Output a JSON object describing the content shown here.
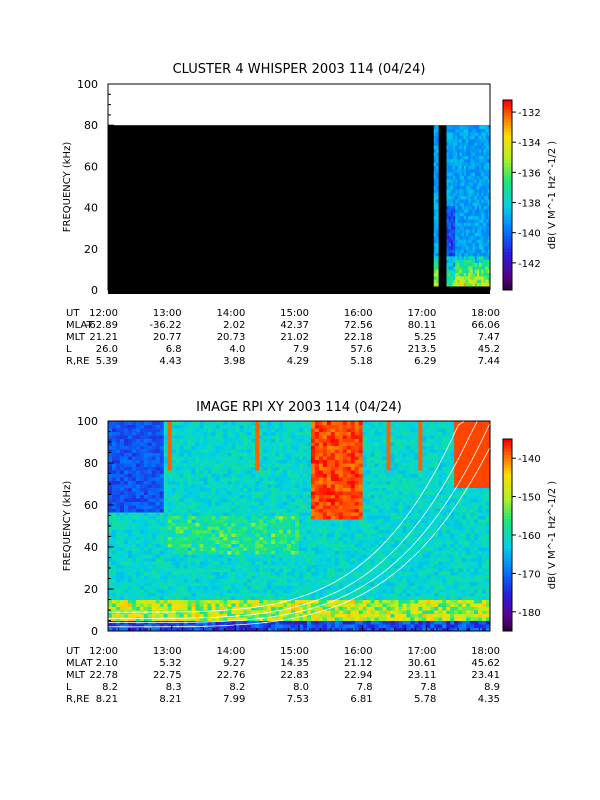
{
  "chart_data": [
    {
      "type": "heatmap",
      "title": "CLUSTER 4 WHISPER 2003 114 (04/24)",
      "xlabel": "",
      "ylabel": "FREQUENCY (kHz)",
      "xlim": [
        "12:00",
        "18:00"
      ],
      "ylim": [
        0,
        100
      ],
      "yticks": [
        "0",
        "20",
        "40",
        "60",
        "80",
        "100"
      ],
      "colorbar": {
        "label": "dB( V M^-1 Hz^-1/2 )",
        "range": [
          -143.8,
          -131.2
        ],
        "ticks": [
          "-132",
          "-134",
          "-136",
          "-138",
          "-140",
          "-142"
        ]
      },
      "coverage": "data between 17:05 and 17:25 and between 17:35 and 18:00, 0-80 kHz; elsewhere black (no data) below 80 kHz",
      "orbit_table": {
        "rows": [
          {
            "label": "UT",
            "values": [
              "12:00",
              "13:00",
              "14:00",
              "15:00",
              "16:00",
              "17:00",
              "18:00"
            ]
          },
          {
            "label": "MLAT",
            "values": [
              "-62.89",
              "-36.22",
              "2.02",
              "42.37",
              "72.56",
              "80.11",
              "66.06"
            ]
          },
          {
            "label": "MLT",
            "values": [
              "21.21",
              "20.77",
              "20.73",
              "21.02",
              "22.18",
              "5.25",
              "7.47"
            ]
          },
          {
            "label": "L",
            "values": [
              "26.0",
              "6.8",
              "4.0",
              "7.9",
              "57.6",
              "213.5",
              "45.2"
            ]
          },
          {
            "label": "R,RE",
            "values": [
              "5.39",
              "4.43",
              "3.98",
              "4.29",
              "5.18",
              "6.29",
              "7.44"
            ]
          }
        ]
      }
    },
    {
      "type": "heatmap",
      "title": "IMAGE RPI XY 2003 114 (04/24)",
      "xlabel": "",
      "ylabel": "FREQUENCY (kHz)",
      "xlim": [
        "12:00",
        "18:00"
      ],
      "ylim": [
        0,
        100
      ],
      "yticks": [
        "0",
        "20",
        "40",
        "60",
        "80",
        "100"
      ],
      "colorbar": {
        "label": "dB( V M^-1 Hz^-1/2 )",
        "range": [
          -185,
          -135
        ],
        "ticks": [
          "-140",
          "-150",
          "-160",
          "-170",
          "-180"
        ]
      },
      "overlay": "white fitted curves rising toward 18:00",
      "orbit_table": {
        "rows": [
          {
            "label": "UT",
            "values": [
              "12:00",
              "13:00",
              "14:00",
              "15:00",
              "16:00",
              "17:00",
              "18:00"
            ]
          },
          {
            "label": "MLAT",
            "values": [
              "2.10",
              "5.32",
              "9.27",
              "14.35",
              "21.12",
              "30.61",
              "45.62"
            ]
          },
          {
            "label": "MLT",
            "values": [
              "22.78",
              "22.75",
              "22.76",
              "22.83",
              "22.94",
              "23.11",
              "23.41"
            ]
          },
          {
            "label": "L",
            "values": [
              "8.2",
              "8.3",
              "8.2",
              "8.0",
              "7.8",
              "7.8",
              "8.9"
            ]
          },
          {
            "label": "R,RE",
            "values": [
              "8.21",
              "8.21",
              "7.99",
              "7.53",
              "6.81",
              "5.78",
              "4.35"
            ]
          }
        ]
      }
    }
  ]
}
